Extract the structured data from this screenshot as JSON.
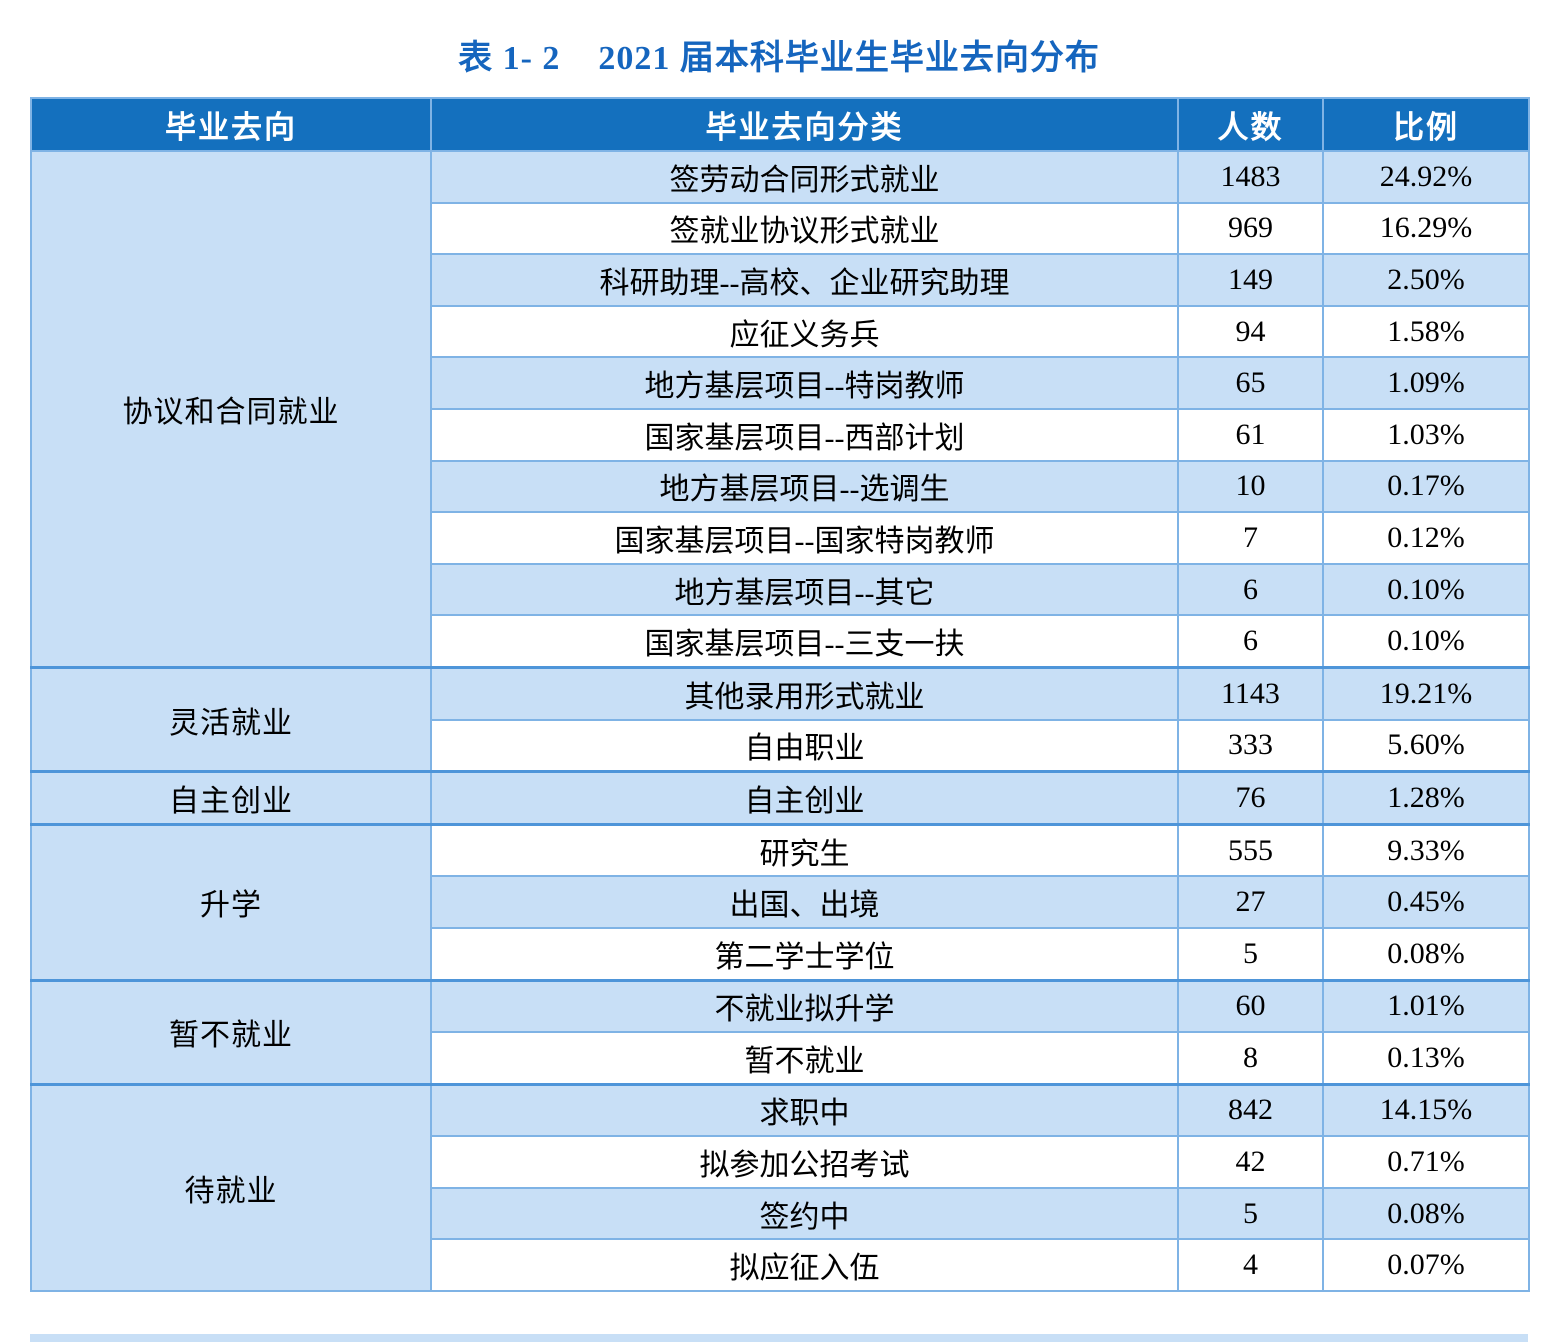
{
  "title": {
    "label": "表 1- 2",
    "text": "2021 届本科毕业生毕业去向分布"
  },
  "table": {
    "columns": [
      "毕业去向",
      "毕业去向分类",
      "人数",
      "比例"
    ],
    "groups": [
      {
        "destination": "协议和合同就业",
        "rows": [
          {
            "category": "签劳动合同形式就业",
            "count": "1483",
            "ratio": "24.92%"
          },
          {
            "category": "签就业协议形式就业",
            "count": "969",
            "ratio": "16.29%"
          },
          {
            "category": "科研助理--高校、企业研究助理",
            "count": "149",
            "ratio": "2.50%"
          },
          {
            "category": "应征义务兵",
            "count": "94",
            "ratio": "1.58%"
          },
          {
            "category": "地方基层项目--特岗教师",
            "count": "65",
            "ratio": "1.09%"
          },
          {
            "category": "国家基层项目--西部计划",
            "count": "61",
            "ratio": "1.03%"
          },
          {
            "category": "地方基层项目--选调生",
            "count": "10",
            "ratio": "0.17%"
          },
          {
            "category": "国家基层项目--国家特岗教师",
            "count": "7",
            "ratio": "0.12%"
          },
          {
            "category": "地方基层项目--其它",
            "count": "6",
            "ratio": "0.10%"
          },
          {
            "category": "国家基层项目--三支一扶",
            "count": "6",
            "ratio": "0.10%"
          }
        ]
      },
      {
        "destination": "灵活就业",
        "rows": [
          {
            "category": "其他录用形式就业",
            "count": "1143",
            "ratio": "19.21%"
          },
          {
            "category": "自由职业",
            "count": "333",
            "ratio": "5.60%"
          }
        ]
      },
      {
        "destination": "自主创业",
        "rows": [
          {
            "category": "自主创业",
            "count": "76",
            "ratio": "1.28%"
          }
        ]
      },
      {
        "destination": "升学",
        "rows": [
          {
            "category": "研究生",
            "count": "555",
            "ratio": "9.33%"
          },
          {
            "category": "出国、出境",
            "count": "27",
            "ratio": "0.45%"
          },
          {
            "category": "第二学士学位",
            "count": "5",
            "ratio": "0.08%"
          }
        ]
      },
      {
        "destination": "暂不就业",
        "rows": [
          {
            "category": "不就业拟升学",
            "count": "60",
            "ratio": "1.01%"
          },
          {
            "category": "暂不就业",
            "count": "8",
            "ratio": "0.13%"
          }
        ]
      },
      {
        "destination": "待就业",
        "rows": [
          {
            "category": "求职中",
            "count": "842",
            "ratio": "14.15%"
          },
          {
            "category": "拟参加公招考试",
            "count": "42",
            "ratio": "0.71%"
          },
          {
            "category": "签约中",
            "count": "5",
            "ratio": "0.08%"
          },
          {
            "category": "拟应征入伍",
            "count": "4",
            "ratio": "0.07%"
          }
        ]
      }
    ]
  },
  "colors": {
    "header_bg": "#1470BE",
    "title_text": "#1565BE",
    "row_shade": "#C8DFF6",
    "cell_border": "#7FB3E5",
    "group_border": "#4E95D9"
  }
}
